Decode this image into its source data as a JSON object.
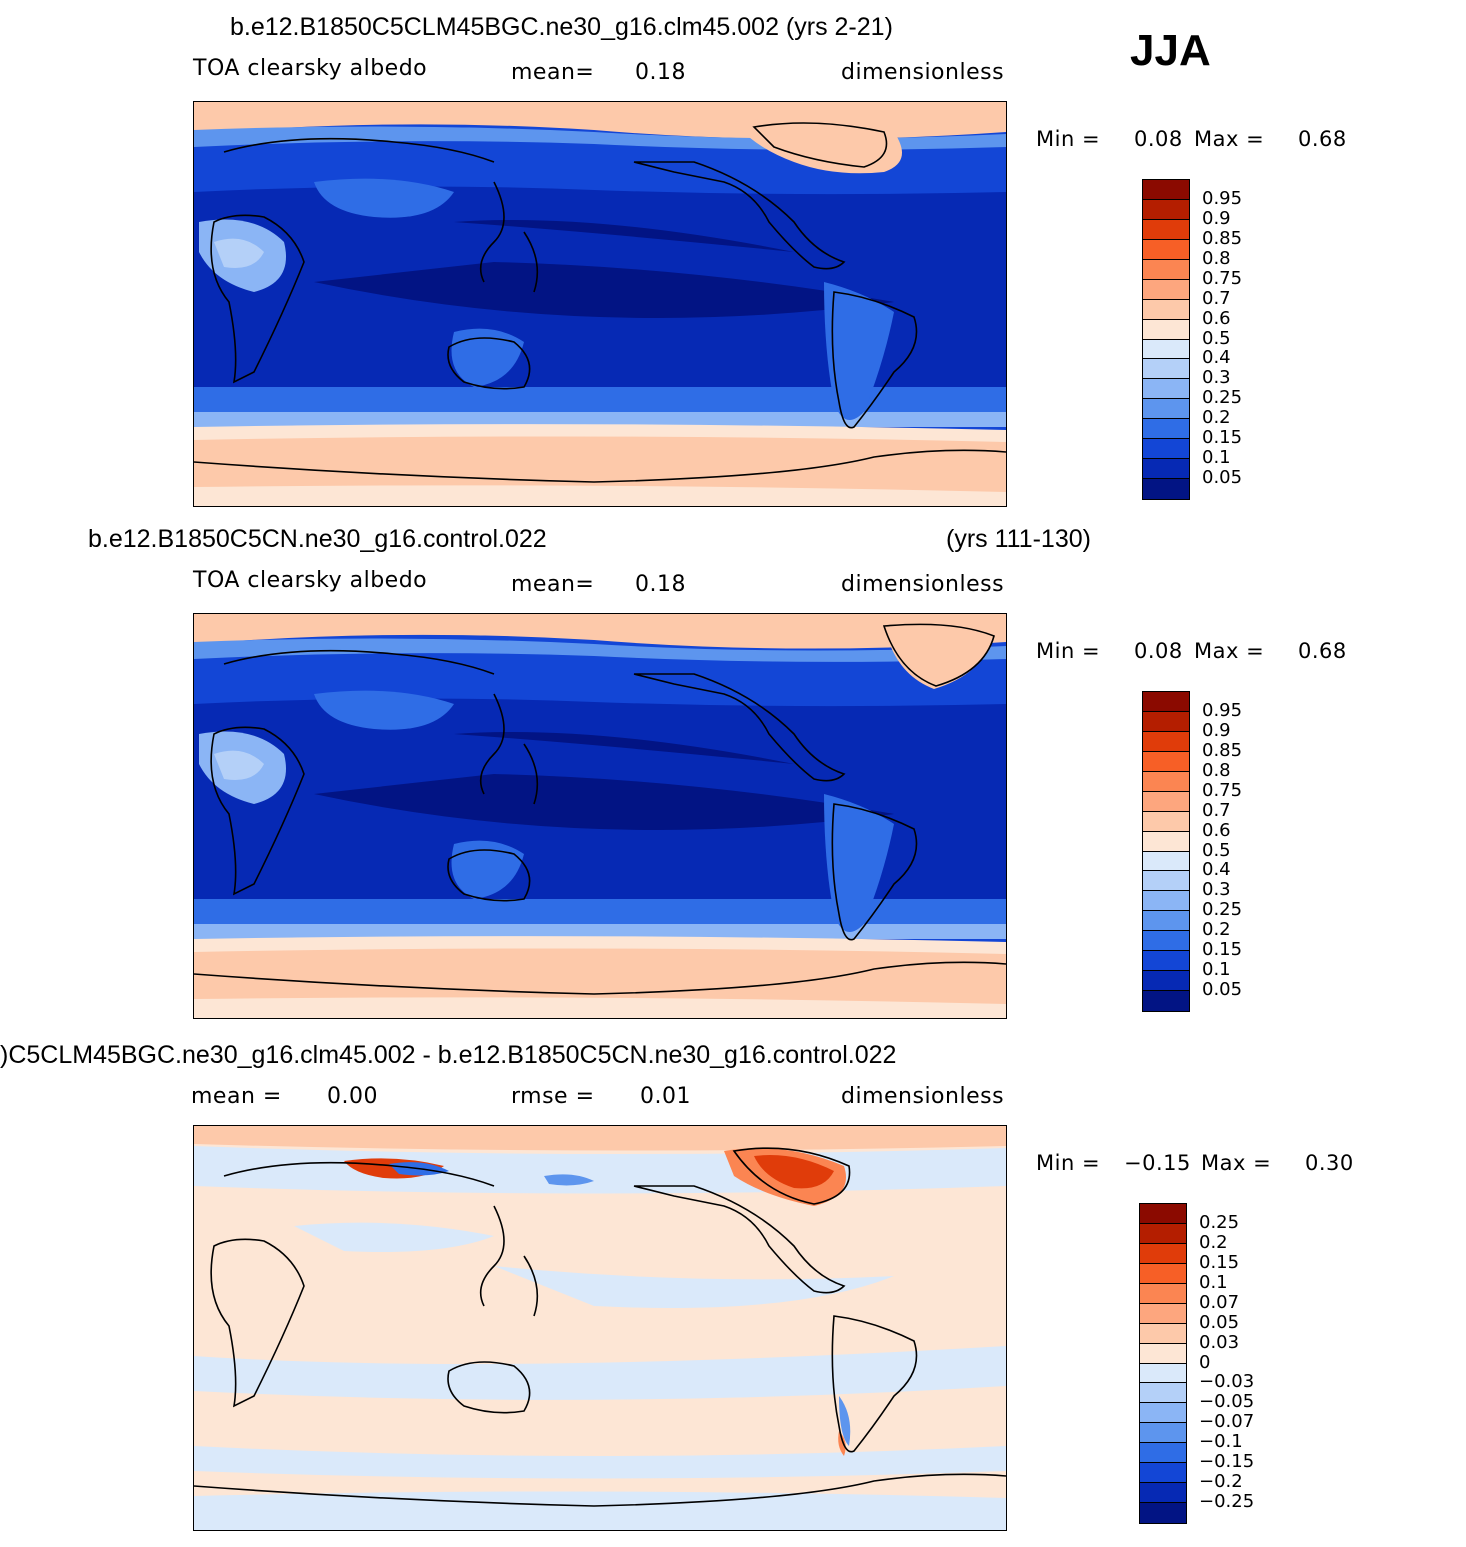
{
  "season": "JJA",
  "panels": [
    {
      "title": "b.e12.B1850C5CLM45BGC.ne30_g16.clm45.002 (yrs 2-21)",
      "variable": "TOA clearsky albedo",
      "mean_label": "mean=",
      "mean_value": "0.18",
      "units": "dimensionless",
      "min_label": "Min =",
      "min_value": "0.08",
      "max_label": "Max =",
      "max_value": "0.68",
      "colorbar": {
        "labels": [
          "0.95",
          "0.9",
          "0.85",
          "0.8",
          "0.75",
          "0.7",
          "0.6",
          "0.5",
          "0.4",
          "0.3",
          "0.25",
          "0.2",
          "0.15",
          "0.1",
          "0.05"
        ],
        "colors": [
          "#8b0a00",
          "#b41e00",
          "#e03c0a",
          "#f75f26",
          "#fb8552",
          "#fda67e",
          "#fdc9aa",
          "#fde6d5",
          "#dae9fa",
          "#b4d0f8",
          "#8bb5f5",
          "#5d95ee",
          "#2f6de6",
          "#1346d6",
          "#0629b4",
          "#021484"
        ]
      }
    },
    {
      "title": "b.e12.B1850C5CN.ne30_g16.control.022",
      "years": "(yrs 111-130)",
      "variable": "TOA clearsky albedo",
      "mean_label": "mean=",
      "mean_value": "0.18",
      "units": "dimensionless",
      "min_label": "Min =",
      "min_value": "0.08",
      "max_label": "Max =",
      "max_value": "0.68",
      "colorbar": {
        "labels": [
          "0.95",
          "0.9",
          "0.85",
          "0.8",
          "0.75",
          "0.7",
          "0.6",
          "0.5",
          "0.4",
          "0.3",
          "0.25",
          "0.2",
          "0.15",
          "0.1",
          "0.05"
        ],
        "colors": [
          "#8b0a00",
          "#b41e00",
          "#e03c0a",
          "#f75f26",
          "#fb8552",
          "#fda67e",
          "#fdc9aa",
          "#fde6d5",
          "#dae9fa",
          "#b4d0f8",
          "#8bb5f5",
          "#5d95ee",
          "#2f6de6",
          "#1346d6",
          "#0629b4",
          "#021484"
        ]
      }
    },
    {
      "title": ")C5CLM45BGC.ne30_g16.clm45.002 - b.e12.B1850C5CN.ne30_g16.control.022",
      "mean_label": "mean =",
      "mean_value": "0.00",
      "rmse_label": "rmse =",
      "rmse_value": "0.01",
      "units": "dimensionless",
      "min_label": "Min =",
      "min_value": "−0.15",
      "max_label": "Max =",
      "max_value": "0.30",
      "colorbar": {
        "labels": [
          "0.25",
          "0.2",
          "0.15",
          "0.1",
          "0.07",
          "0.05",
          "0.03",
          "0",
          "−0.03",
          "−0.05",
          "−0.07",
          "−0.1",
          "−0.15",
          "−0.2",
          "−0.25"
        ],
        "colors": [
          "#8b0a00",
          "#b41e00",
          "#e03c0a",
          "#f75f26",
          "#fb8552",
          "#fda67e",
          "#fdc9aa",
          "#fde6d5",
          "#dae9fa",
          "#b4d0f8",
          "#8bb5f5",
          "#5d95ee",
          "#2f6de6",
          "#1346d6",
          "#0629b4",
          "#021484"
        ]
      }
    }
  ]
}
